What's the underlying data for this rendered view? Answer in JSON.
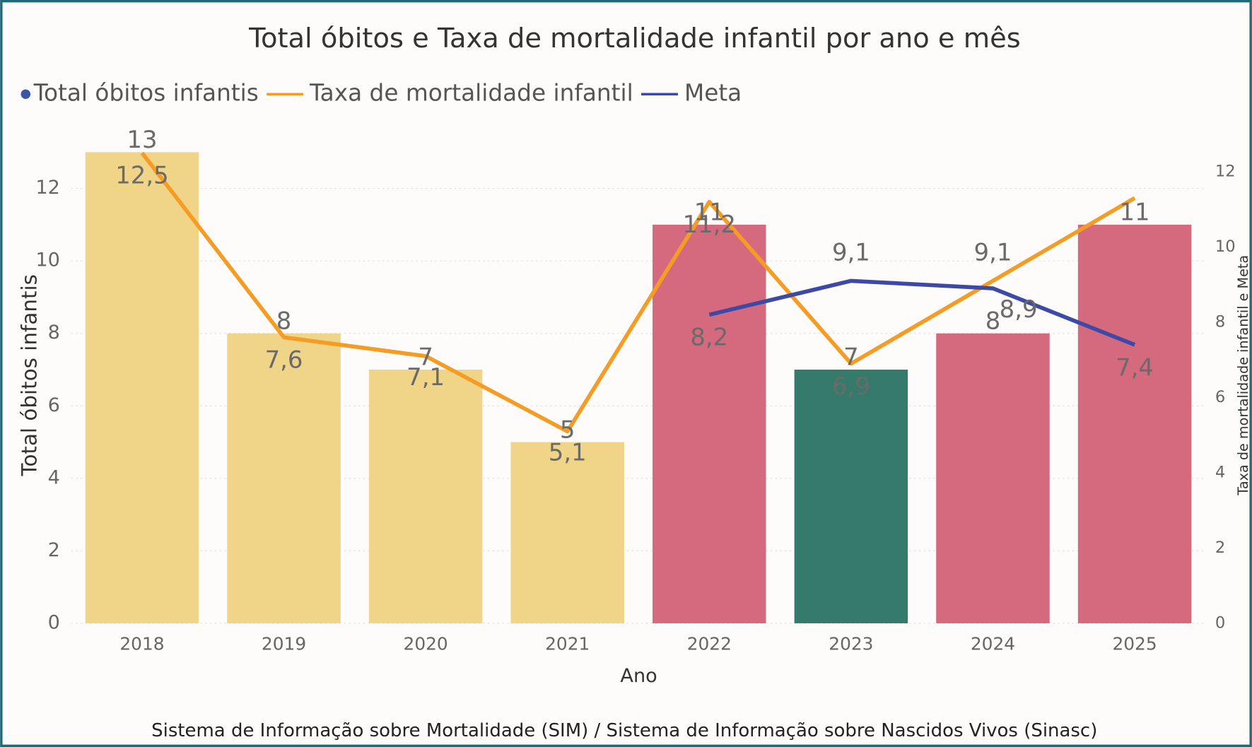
{
  "chart_data": {
    "type": "bar-line",
    "title": "Total óbitos e Taxa de mortalidade infantil por ano e mês",
    "x_label": "Ano",
    "y_label": "Total óbitos infantis",
    "y2_label": "Taxa de mortalidade infantil e Meta",
    "source": "Sistema de Informação sobre Mortalidade (SIM) / Sistema de Informação sobre Nascidos Vivos (Sinasc)",
    "categories": [
      "2018",
      "2019",
      "2020",
      "2021",
      "2022",
      "2023",
      "2024",
      "2025"
    ],
    "series": [
      {
        "name": "Total óbitos infantis",
        "type": "bar",
        "color": "#3c56a6",
        "colors": [
          "#f0d488",
          "#f0d488",
          "#f0d488",
          "#f0d488",
          "#d56a7e",
          "#367a6c",
          "#d56a7e",
          "#d56a7e"
        ],
        "values": [
          13,
          8,
          7,
          5,
          11,
          7,
          8,
          11
        ]
      },
      {
        "name": "Taxa de mortalidade infantil",
        "type": "line",
        "axis": "y2",
        "color": "#f59c25",
        "values": [
          12.5,
          7.6,
          7.1,
          5.1,
          11.2,
          6.9,
          9.1,
          11.3
        ],
        "value_labels": [
          "12,5",
          "7,6",
          "7,1",
          "5,1",
          "11,2",
          "6,9",
          "9,1",
          null
        ]
      },
      {
        "name": "Meta",
        "type": "line",
        "axis": "y2",
        "color": "#3c4aa6",
        "values": [
          null,
          null,
          null,
          null,
          8.2,
          9.1,
          8.9,
          7.4
        ],
        "value_labels": [
          null,
          null,
          null,
          null,
          "8,2",
          "9,1",
          "8,9",
          "7,4"
        ]
      }
    ],
    "ylim": [
      0,
      13.5
    ],
    "yticks": [
      0,
      2,
      4,
      6,
      8,
      10,
      12
    ],
    "y2lim": [
      0,
      13
    ],
    "y2ticks": [
      0,
      2,
      4,
      6,
      8,
      10,
      12
    ],
    "grid": true
  }
}
